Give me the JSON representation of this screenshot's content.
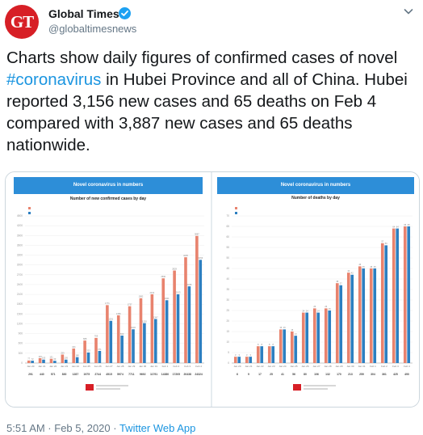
{
  "account": {
    "avatar_text": "GT",
    "name": "Global Times",
    "handle": "@globaltimesnews",
    "brand_color": "#d71f26",
    "verified_color": "#1da1f2"
  },
  "tweet": {
    "text_before": "Charts show daily figures of confirmed cases of novel ",
    "hashtag": "#coronavirus",
    "text_after": " in Hubei Province and all of China. Hubei reported 3,156 new cases and 65 deaths on Feb 4 compared with 3,887 new cases and 65 deaths nationwide.",
    "link_color": "#1b95e0"
  },
  "media": {
    "banner_color": "#2d8ed8",
    "colors": {
      "china": "#e8836e",
      "hubei": "#2c7fc1"
    }
  },
  "chart_data": [
    {
      "type": "bar",
      "banner": "Novel coronavirus in numbers",
      "title": "Number of new confirmed cases by day",
      "categories": [
        "Jan 20",
        "Jan 21",
        "Jan 22",
        "Jan 23",
        "Jan 24",
        "Jan 25",
        "Jan 26",
        "Jan 27",
        "Jan 28",
        "Jan 29",
        "Jan 30",
        "Jan 31",
        "Feb 1",
        "Feb 2",
        "Feb 3",
        "Feb 4"
      ],
      "ylim": [
        0,
        4500
      ],
      "yticks": [
        0,
        300,
        600,
        900,
        1200,
        1500,
        1800,
        2100,
        2400,
        2700,
        3000,
        3300,
        3600,
        3900,
        4200,
        4500
      ],
      "series": [
        {
          "values": [
            77,
            149,
            131,
            259,
            444,
            688,
            769,
            1771,
            1459,
            1737,
            1982,
            2102,
            2590,
            2829,
            3235,
            3887
          ]
        },
        {
          "values": [
            72,
            105,
            69,
            105,
            180,
            323,
            371,
            1291,
            840,
            1032,
            1220,
            1347,
            1921,
            2103,
            2345,
            3156
          ]
        }
      ],
      "bottom_row": [
        "291",
        "440",
        "571",
        "830",
        "1287",
        "1975",
        "2744",
        "4515",
        "5974",
        "7711",
        "9692",
        "11791",
        "14380",
        "17205",
        "20438",
        "24324"
      ],
      "grid": true
    },
    {
      "type": "bar",
      "banner": "Novel coronavirus in numbers",
      "title": "Number of deaths by day",
      "categories": [
        "Jan 20",
        "Jan 21",
        "Jan 22",
        "Jan 23",
        "Jan 24",
        "Jan 25",
        "Jan 26",
        "Jan 27",
        "Jan 28",
        "Jan 29",
        "Jan 30",
        "Jan 31",
        "Feb 1",
        "Feb 2",
        "Feb 3",
        "Feb 4"
      ],
      "ylim": [
        0,
        70
      ],
      "yticks": [
        0,
        5,
        10,
        15,
        20,
        25,
        30,
        35,
        40,
        45,
        50,
        55,
        60,
        65,
        70
      ],
      "series": [
        {
          "values": [
            3,
            3,
            8,
            8,
            16,
            15,
            24,
            26,
            26,
            38,
            43,
            46,
            45,
            57,
            64,
            65
          ]
        },
        {
          "values": [
            3,
            3,
            8,
            8,
            16,
            13,
            24,
            24,
            25,
            37,
            42,
            45,
            45,
            56,
            64,
            65
          ]
        }
      ],
      "bottom_row": [
        "6",
        "9",
        "17",
        "25",
        "41",
        "56",
        "80",
        "106",
        "132",
        "170",
        "213",
        "259",
        "304",
        "361",
        "425",
        "490"
      ],
      "grid": true
    }
  ],
  "footer": {
    "time": "5:51 AM · Feb 5, 2020 · ",
    "app": "Twitter Web App"
  }
}
